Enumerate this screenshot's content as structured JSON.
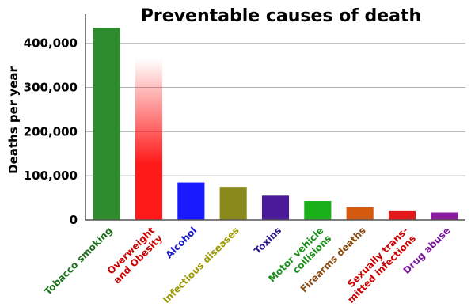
{
  "chart_data": {
    "type": "bar",
    "title": "Preventable causes of death",
    "ylabel": "Deaths per year",
    "xlabel": "",
    "ylim": [
      0,
      430000
    ],
    "yticks": [
      0,
      100000,
      200000,
      300000,
      400000
    ],
    "ytick_labels": [
      "0",
      "100,000",
      "200,000",
      "300,000",
      "400,000"
    ],
    "grid": true,
    "categories": [
      [
        "Tobacco smoking"
      ],
      [
        "Overweight",
        "and Obesity"
      ],
      [
        "Alcohol"
      ],
      [
        "Infectious diseases"
      ],
      [
        "Toxins"
      ],
      [
        "Motor vehicle",
        "collisions"
      ],
      [
        "Firearms deaths"
      ],
      [
        "Sexually trans-",
        "mitted infections"
      ],
      [
        "Drug abuse"
      ]
    ],
    "values": [
      435000,
      365000,
      85000,
      75000,
      55000,
      43000,
      29000,
      20000,
      17000
    ],
    "colors": [
      "#2e8b2e",
      "#ff1a1a",
      "#1a1aff",
      "#8a8a1a",
      "#4b1a9b",
      "#1ab01a",
      "#d45a10",
      "#e01a1a",
      "#8a1aa0"
    ],
    "label_colors": [
      "#1a6e1a",
      "#cc0000",
      "#1a1acc",
      "#9a9a00",
      "#2a1a8a",
      "#1a901a",
      "#8a4a10",
      "#cc0000",
      "#7a1a9a"
    ],
    "gradient_fade": [
      false,
      true,
      false,
      false,
      false,
      false,
      false,
      false,
      false
    ]
  }
}
